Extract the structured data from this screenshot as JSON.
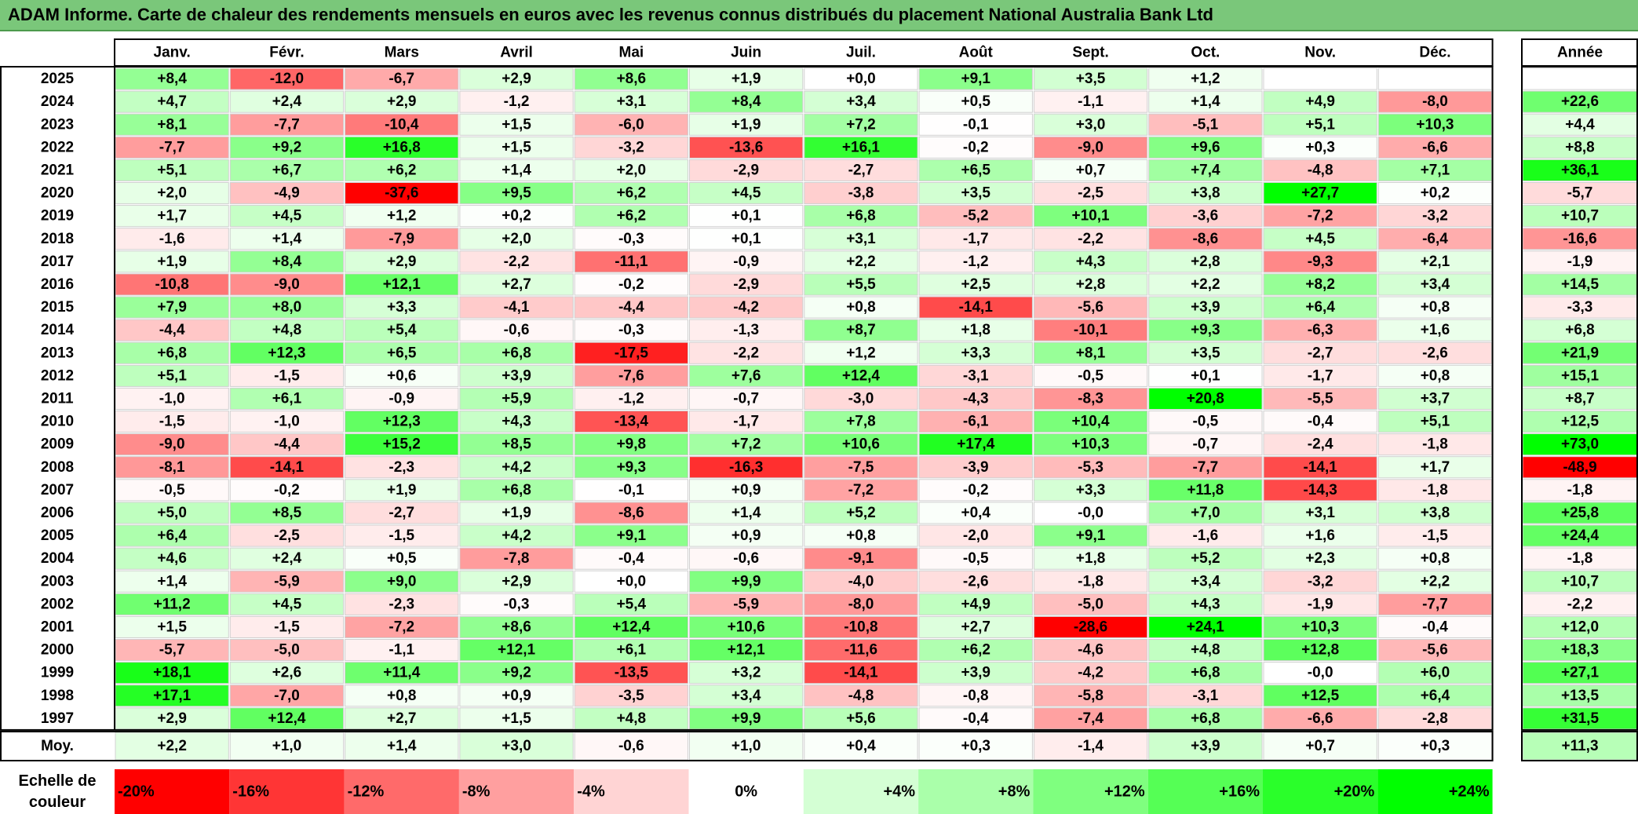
{
  "title": "ADAM Informe. Carte de chaleur des rendements mensuels en euros avec les revenus connus distribués du placement National Australia Bank Ltd",
  "chart_data": {
    "type": "heatmap",
    "columns": [
      "Janv.",
      "Févr.",
      "Mars",
      "Avril",
      "Mai",
      "Juin",
      "Juil.",
      "Août",
      "Sept.",
      "Oct.",
      "Nov.",
      "Déc."
    ],
    "year_column": "Année",
    "rows": [
      {
        "year": "2025",
        "months": [
          "+8,4",
          "-12,0",
          "-6,7",
          "+2,9",
          "+8,6",
          "+1,9",
          "+0,0",
          "+9,1",
          "+3,5",
          "+1,2",
          "",
          ""
        ],
        "annual": ""
      },
      {
        "year": "2024",
        "months": [
          "+4,7",
          "+2,4",
          "+2,9",
          "-1,2",
          "+3,1",
          "+8,4",
          "+3,4",
          "+0,5",
          "-1,1",
          "+1,4",
          "+4,9",
          "-8,0"
        ],
        "annual": "+22,6"
      },
      {
        "year": "2023",
        "months": [
          "+8,1",
          "-7,7",
          "-10,4",
          "+1,5",
          "-6,0",
          "+1,9",
          "+7,2",
          "-0,1",
          "+3,0",
          "-5,1",
          "+5,1",
          "+10,3"
        ],
        "annual": "+4,4"
      },
      {
        "year": "2022",
        "months": [
          "-7,7",
          "+9,2",
          "+16,8",
          "+1,5",
          "-3,2",
          "-13,6",
          "+16,1",
          "-0,2",
          "-9,0",
          "+9,6",
          "+0,3",
          "-6,6"
        ],
        "annual": "+8,8"
      },
      {
        "year": "2021",
        "months": [
          "+5,1",
          "+6,7",
          "+6,2",
          "+1,4",
          "+2,0",
          "-2,9",
          "-2,7",
          "+6,5",
          "+0,7",
          "+7,4",
          "-4,8",
          "+7,1"
        ],
        "annual": "+36,1"
      },
      {
        "year": "2020",
        "months": [
          "+2,0",
          "-4,9",
          "-37,6",
          "+9,5",
          "+6,2",
          "+4,5",
          "-3,8",
          "+3,5",
          "-2,5",
          "+3,8",
          "+27,7",
          "+0,2"
        ],
        "annual": "-5,7"
      },
      {
        "year": "2019",
        "months": [
          "+1,7",
          "+4,5",
          "+1,2",
          "+0,2",
          "+6,2",
          "+0,1",
          "+6,8",
          "-5,2",
          "+10,1",
          "-3,6",
          "-7,2",
          "-3,2"
        ],
        "annual": "+10,7"
      },
      {
        "year": "2018",
        "months": [
          "-1,6",
          "+1,4",
          "-7,9",
          "+2,0",
          "-0,3",
          "+0,1",
          "+3,1",
          "-1,7",
          "-2,2",
          "-8,6",
          "+4,5",
          "-6,4"
        ],
        "annual": "-16,6"
      },
      {
        "year": "2017",
        "months": [
          "+1,9",
          "+8,4",
          "+2,9",
          "-2,2",
          "-11,1",
          "-0,9",
          "+2,2",
          "-1,2",
          "+4,3",
          "+2,8",
          "-9,3",
          "+2,1"
        ],
        "annual": "-1,9"
      },
      {
        "year": "2016",
        "months": [
          "-10,8",
          "-9,0",
          "+12,1",
          "+2,7",
          "-0,2",
          "-2,9",
          "+5,5",
          "+2,5",
          "+2,8",
          "+2,2",
          "+8,2",
          "+3,4"
        ],
        "annual": "+14,5"
      },
      {
        "year": "2015",
        "months": [
          "+7,9",
          "+8,0",
          "+3,3",
          "-4,1",
          "-4,4",
          "-4,2",
          "+0,8",
          "-14,1",
          "-5,6",
          "+3,9",
          "+6,4",
          "+0,8"
        ],
        "annual": "-3,3"
      },
      {
        "year": "2014",
        "months": [
          "-4,4",
          "+4,8",
          "+5,4",
          "-0,6",
          "-0,3",
          "-1,3",
          "+8,7",
          "+1,8",
          "-10,1",
          "+9,3",
          "-6,3",
          "+1,6"
        ],
        "annual": "+6,8"
      },
      {
        "year": "2013",
        "months": [
          "+6,8",
          "+12,3",
          "+6,5",
          "+6,8",
          "-17,5",
          "-2,2",
          "+1,2",
          "+3,3",
          "+8,1",
          "+3,5",
          "-2,7",
          "-2,6"
        ],
        "annual": "+21,9"
      },
      {
        "year": "2012",
        "months": [
          "+5,1",
          "-1,5",
          "+0,6",
          "+3,9",
          "-7,6",
          "+7,6",
          "+12,4",
          "-3,1",
          "-0,5",
          "+0,1",
          "-1,7",
          "+0,8"
        ],
        "annual": "+15,1"
      },
      {
        "year": "2011",
        "months": [
          "-1,0",
          "+6,1",
          "-0,9",
          "+5,9",
          "-1,2",
          "-0,7",
          "-3,0",
          "-4,3",
          "-8,3",
          "+20,8",
          "-5,5",
          "+3,7"
        ],
        "annual": "+8,7"
      },
      {
        "year": "2010",
        "months": [
          "-1,5",
          "-1,0",
          "+12,3",
          "+4,3",
          "-13,4",
          "-1,7",
          "+7,8",
          "-6,1",
          "+10,4",
          "-0,5",
          "-0,4",
          "+5,1"
        ],
        "annual": "+12,5"
      },
      {
        "year": "2009",
        "months": [
          "-9,0",
          "-4,4",
          "+15,2",
          "+8,5",
          "+9,8",
          "+7,2",
          "+10,6",
          "+17,4",
          "+10,3",
          "-0,7",
          "-2,4",
          "-1,8"
        ],
        "annual": "+73,0"
      },
      {
        "year": "2008",
        "months": [
          "-8,1",
          "-14,1",
          "-2,3",
          "+4,2",
          "+9,3",
          "-16,3",
          "-7,5",
          "-3,9",
          "-5,3",
          "-7,7",
          "-14,1",
          "+1,7"
        ],
        "annual": "-48,9"
      },
      {
        "year": "2007",
        "months": [
          "-0,5",
          "-0,2",
          "+1,9",
          "+6,8",
          "-0,1",
          "+0,9",
          "-7,2",
          "-0,2",
          "+3,3",
          "+11,8",
          "-14,3",
          "-1,8"
        ],
        "annual": "-1,8"
      },
      {
        "year": "2006",
        "months": [
          "+5,0",
          "+8,5",
          "-2,7",
          "+1,9",
          "-8,6",
          "+1,4",
          "+5,2",
          "+0,4",
          "-0,0",
          "+7,0",
          "+3,1",
          "+3,8"
        ],
        "annual": "+25,8"
      },
      {
        "year": "2005",
        "months": [
          "+6,4",
          "-2,5",
          "-1,5",
          "+4,2",
          "+9,1",
          "+0,9",
          "+0,8",
          "-2,0",
          "+9,1",
          "-1,6",
          "+1,6",
          "-1,5"
        ],
        "annual": "+24,4"
      },
      {
        "year": "2004",
        "months": [
          "+4,6",
          "+2,4",
          "+0,5",
          "-7,8",
          "-0,4",
          "-0,6",
          "-9,1",
          "-0,5",
          "+1,8",
          "+5,2",
          "+2,3",
          "+0,8"
        ],
        "annual": "-1,8"
      },
      {
        "year": "2003",
        "months": [
          "+1,4",
          "-5,9",
          "+9,0",
          "+2,9",
          "+0,0",
          "+9,9",
          "-4,0",
          "-2,6",
          "-1,8",
          "+3,4",
          "-3,2",
          "+2,2"
        ],
        "annual": "+10,7"
      },
      {
        "year": "2002",
        "months": [
          "+11,2",
          "+4,5",
          "-2,3",
          "-0,3",
          "+5,4",
          "-5,9",
          "-8,0",
          "+4,9",
          "-5,0",
          "+4,3",
          "-1,9",
          "-7,7"
        ],
        "annual": "-2,2"
      },
      {
        "year": "2001",
        "months": [
          "+1,5",
          "-1,5",
          "-7,2",
          "+8,6",
          "+12,4",
          "+10,6",
          "-10,8",
          "+2,7",
          "-28,6",
          "+24,1",
          "+10,3",
          "-0,4"
        ],
        "annual": "+12,0"
      },
      {
        "year": "2000",
        "months": [
          "-5,7",
          "-5,0",
          "-1,1",
          "+12,1",
          "+6,1",
          "+12,1",
          "-11,6",
          "+6,2",
          "-4,6",
          "+4,8",
          "+12,8",
          "-5,6"
        ],
        "annual": "+18,3"
      },
      {
        "year": "1999",
        "months": [
          "+18,1",
          "+2,6",
          "+11,4",
          "+9,2",
          "-13,5",
          "+3,2",
          "-14,1",
          "+3,9",
          "-4,2",
          "+6,8",
          "-0,0",
          "+6,0"
        ],
        "annual": "+27,1"
      },
      {
        "year": "1998",
        "months": [
          "+17,1",
          "-7,0",
          "+0,8",
          "+0,9",
          "-3,5",
          "+3,4",
          "-4,8",
          "-0,8",
          "-5,8",
          "-3,1",
          "+12,5",
          "+6,4"
        ],
        "annual": "+13,5"
      },
      {
        "year": "1997",
        "months": [
          "+2,9",
          "+12,4",
          "+2,7",
          "+1,5",
          "+4,8",
          "+9,9",
          "+5,6",
          "-0,4",
          "-7,4",
          "+6,8",
          "-6,6",
          "-2,8"
        ],
        "annual": "+31,5"
      }
    ],
    "average": {
      "label": "Moy.",
      "months": [
        "+2,2",
        "+1,0",
        "+1,4",
        "+3,0",
        "-0,6",
        "+1,0",
        "+0,4",
        "+0,3",
        "-1,4",
        "+3,9",
        "+0,7",
        "+0,3"
      ],
      "annual": "+11,3"
    },
    "color_scale": {
      "label": "Echelle de couleur",
      "stops": [
        {
          "label": "-20%",
          "color": "#ff0000"
        },
        {
          "label": "-16%",
          "color": "#ff3535"
        },
        {
          "label": "-12%",
          "color": "#ff6a6a"
        },
        {
          "label": "-8%",
          "color": "#ff9f9f"
        },
        {
          "label": "-4%",
          "color": "#ffd4d4"
        },
        {
          "label": "0%",
          "color": "#ffffff"
        },
        {
          "label": "+4%",
          "color": "#d4ffd4"
        },
        {
          "label": "+8%",
          "color": "#aaffaa"
        },
        {
          "label": "+12%",
          "color": "#7fff7f"
        },
        {
          "label": "+16%",
          "color": "#55ff55"
        },
        {
          "label": "+20%",
          "color": "#2aff2a"
        },
        {
          "label": "+24%",
          "color": "#00ff00"
        }
      ]
    },
    "colors": {
      "negative_max": "#ff0000",
      "neutral": "#ffffff",
      "positive_max": "#00ff00",
      "title_bar": "#7ac77a"
    }
  }
}
